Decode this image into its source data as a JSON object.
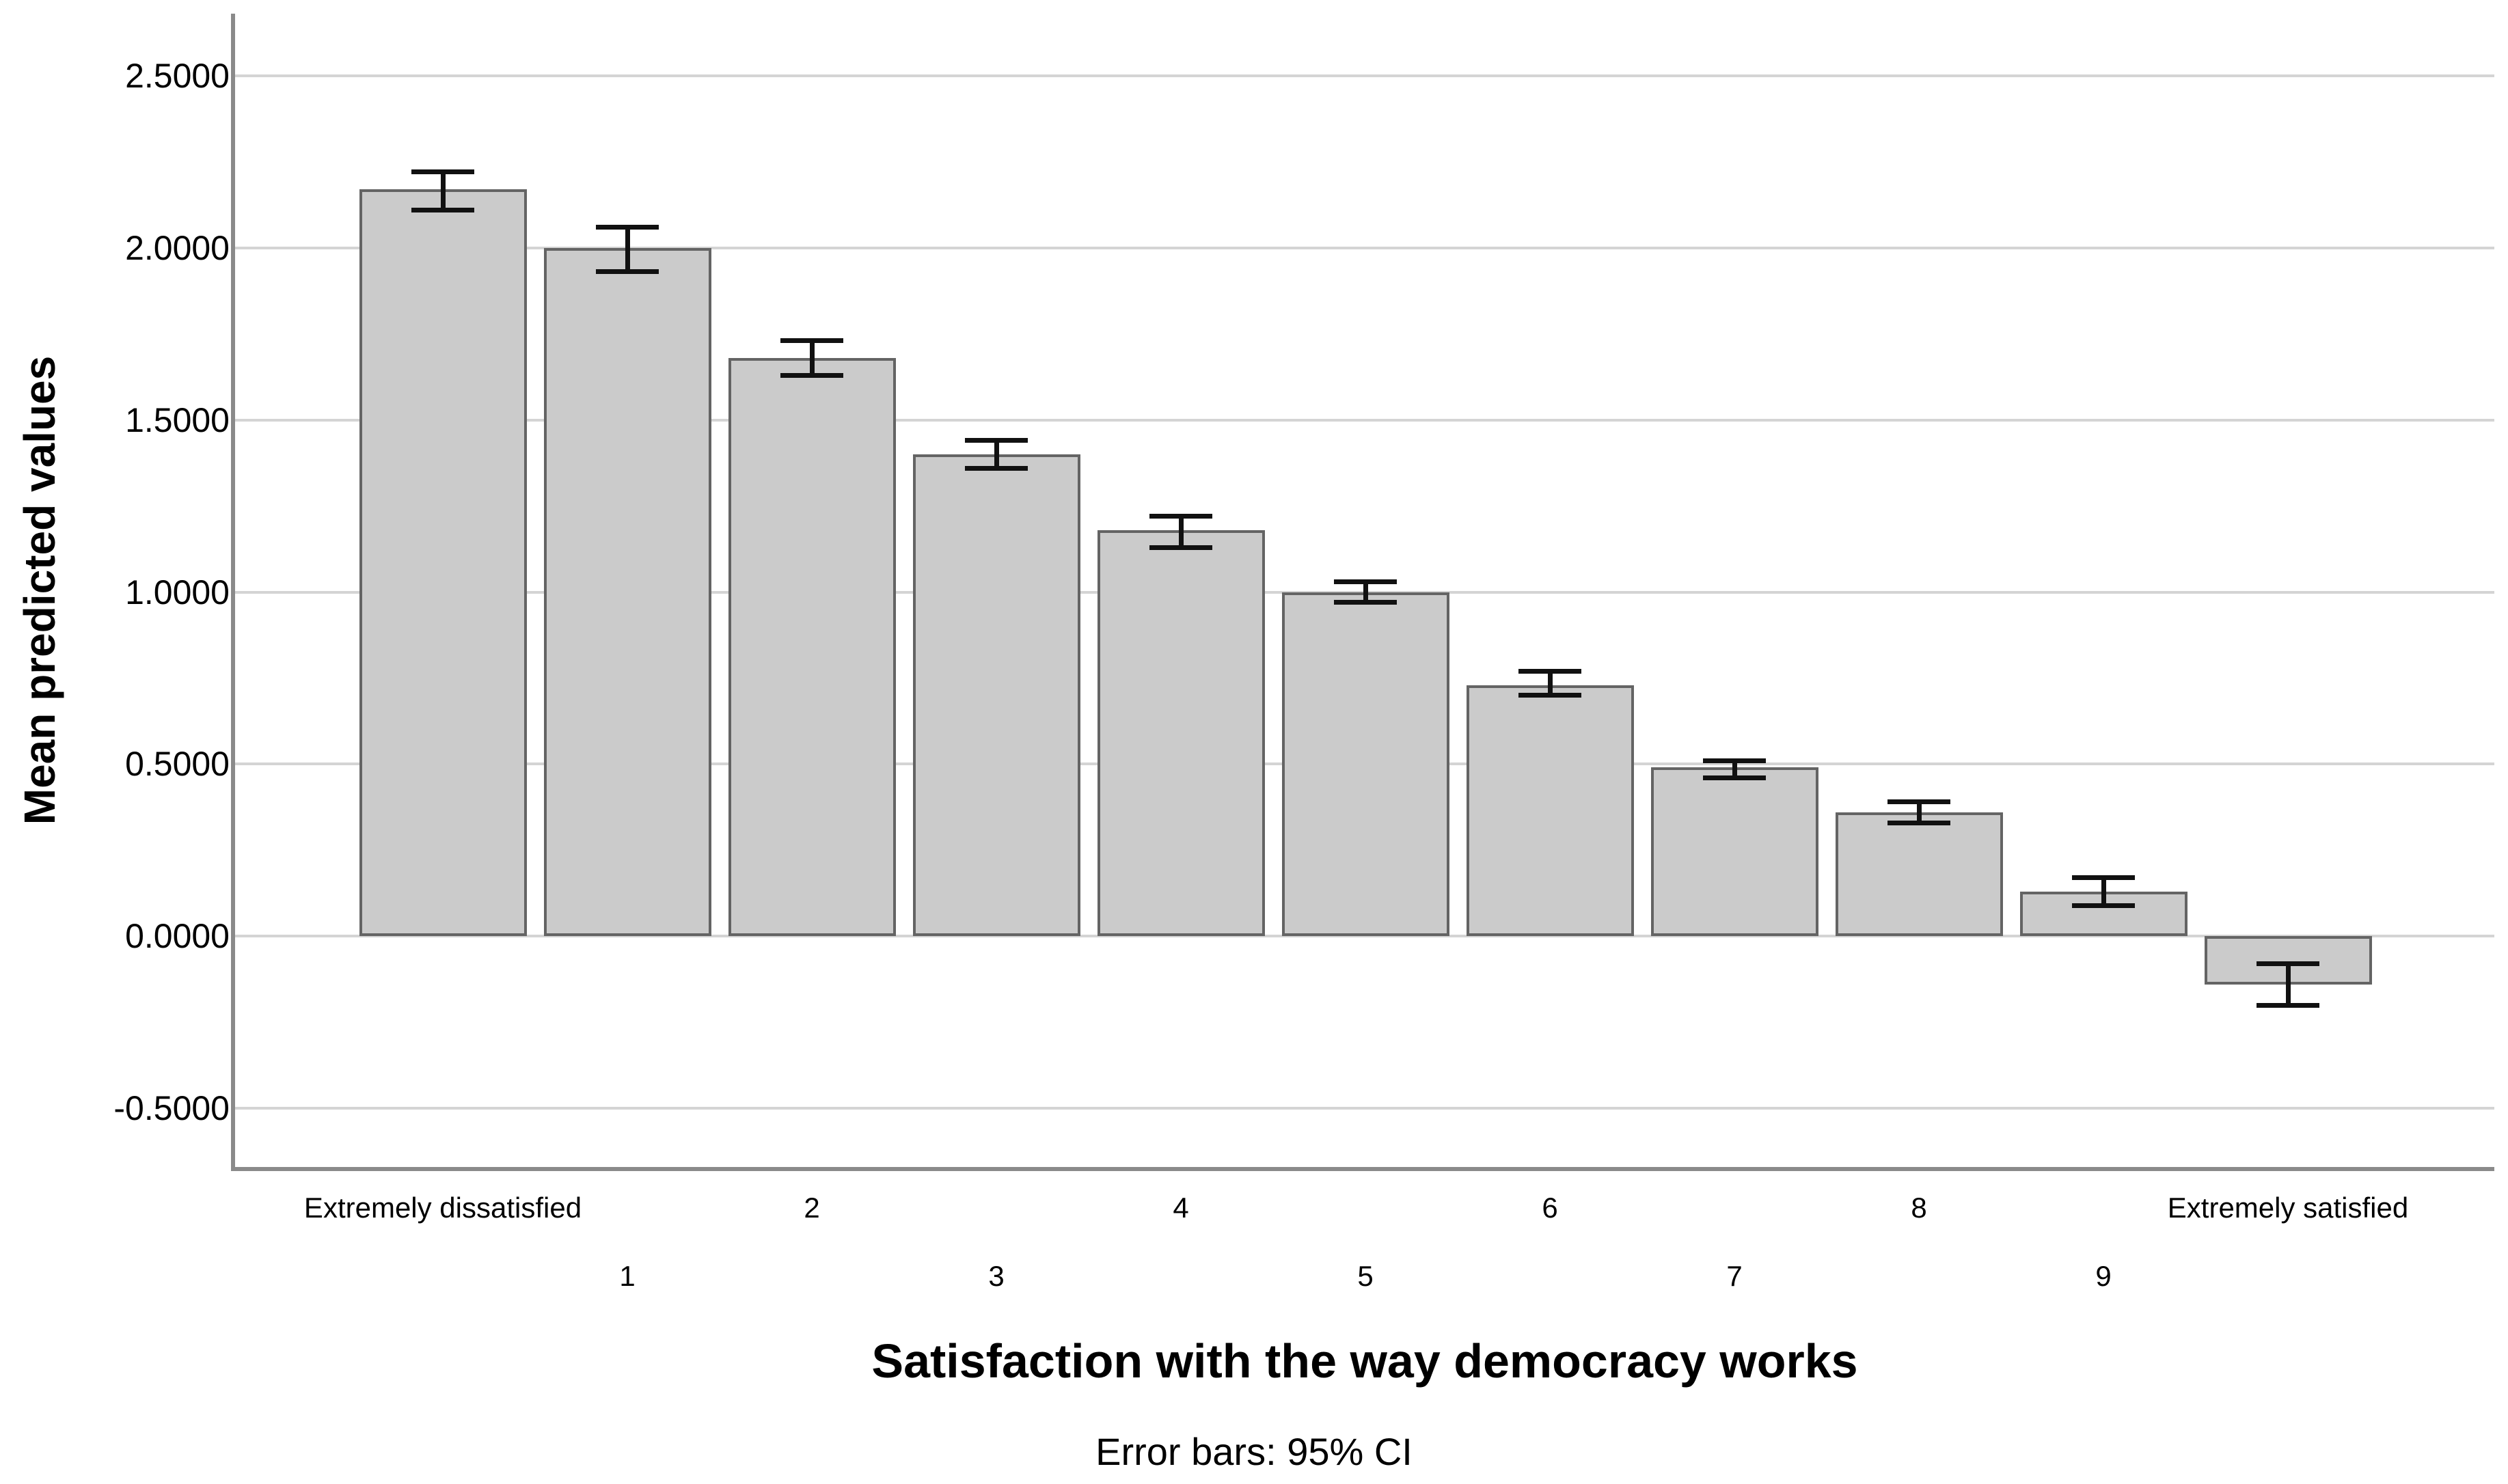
{
  "chart_data": {
    "type": "bar",
    "title": "",
    "ylabel": "Mean predicted values",
    "xlabel": "Satisfaction with the way democracy works",
    "footnote": "Error bars: 95% CI",
    "categories": [
      "Extremely dissatisfied",
      "1",
      "2",
      "3",
      "4",
      "5",
      "6",
      "7",
      "8",
      "9",
      "Extremely satisfied"
    ],
    "values": [
      2.17,
      2.0,
      1.68,
      1.4,
      1.18,
      1.0,
      0.73,
      0.49,
      0.36,
      0.13,
      -0.14
    ],
    "ci_low": [
      2.11,
      1.93,
      1.63,
      1.36,
      1.13,
      0.97,
      0.7,
      0.46,
      0.33,
      0.09,
      -0.2
    ],
    "ci_high": [
      2.22,
      2.06,
      1.73,
      1.44,
      1.22,
      1.03,
      0.77,
      0.51,
      0.39,
      0.17,
      -0.08
    ],
    "ylim": [
      -0.67,
      2.68
    ],
    "yticks": [
      {
        "value": 2.5,
        "label": "2.5000"
      },
      {
        "value": 2.0,
        "label": "2.0000"
      },
      {
        "value": 1.5,
        "label": "1.5000"
      },
      {
        "value": 1.0,
        "label": "1.0000"
      },
      {
        "value": 0.5,
        "label": "0.5000"
      },
      {
        "value": 0.0,
        "label": "0.0000"
      },
      {
        "value": -0.5,
        "label": "-0.5000"
      }
    ],
    "legend": "none",
    "grid": "horizontal",
    "colors": {
      "background": "#ffffff",
      "bar_fill": "#cbcbcb",
      "bar_border": "#646464",
      "gridline": "#d4d4d4",
      "axis_line": "#8a8a8a",
      "error_bar": "#111111",
      "text": "#000000"
    }
  }
}
